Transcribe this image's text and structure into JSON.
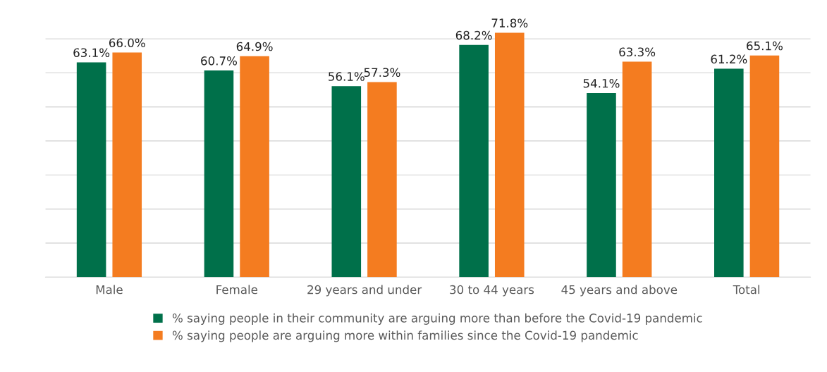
{
  "chart_data": {
    "type": "bar",
    "categories": [
      "Male",
      "Female",
      "29 years and under",
      "30 to 44 years",
      "45 years and above",
      "Total"
    ],
    "series": [
      {
        "name": "% saying people in their community are arguing more than before the Covid-19 pandemic",
        "color": "#00704a",
        "values": [
          63.1,
          60.7,
          56.1,
          68.2,
          54.1,
          61.2
        ],
        "value_labels": [
          "63.1%",
          "60.7%",
          "56.1%",
          "68.2%",
          "54.1%",
          "61.2%"
        ]
      },
      {
        "name": "% saying people are arguing more within families since the Covid-19 pandemic",
        "color": "#f47c20",
        "values": [
          66.0,
          64.9,
          57.3,
          71.8,
          63.3,
          65.1
        ],
        "value_labels": [
          "66.0%",
          "64.9%",
          "57.3%",
          "71.8%",
          "63.3%",
          "65.1%"
        ]
      }
    ],
    "tick_labels": "x",
    "grid": "y",
    "legend": "bottom"
  }
}
